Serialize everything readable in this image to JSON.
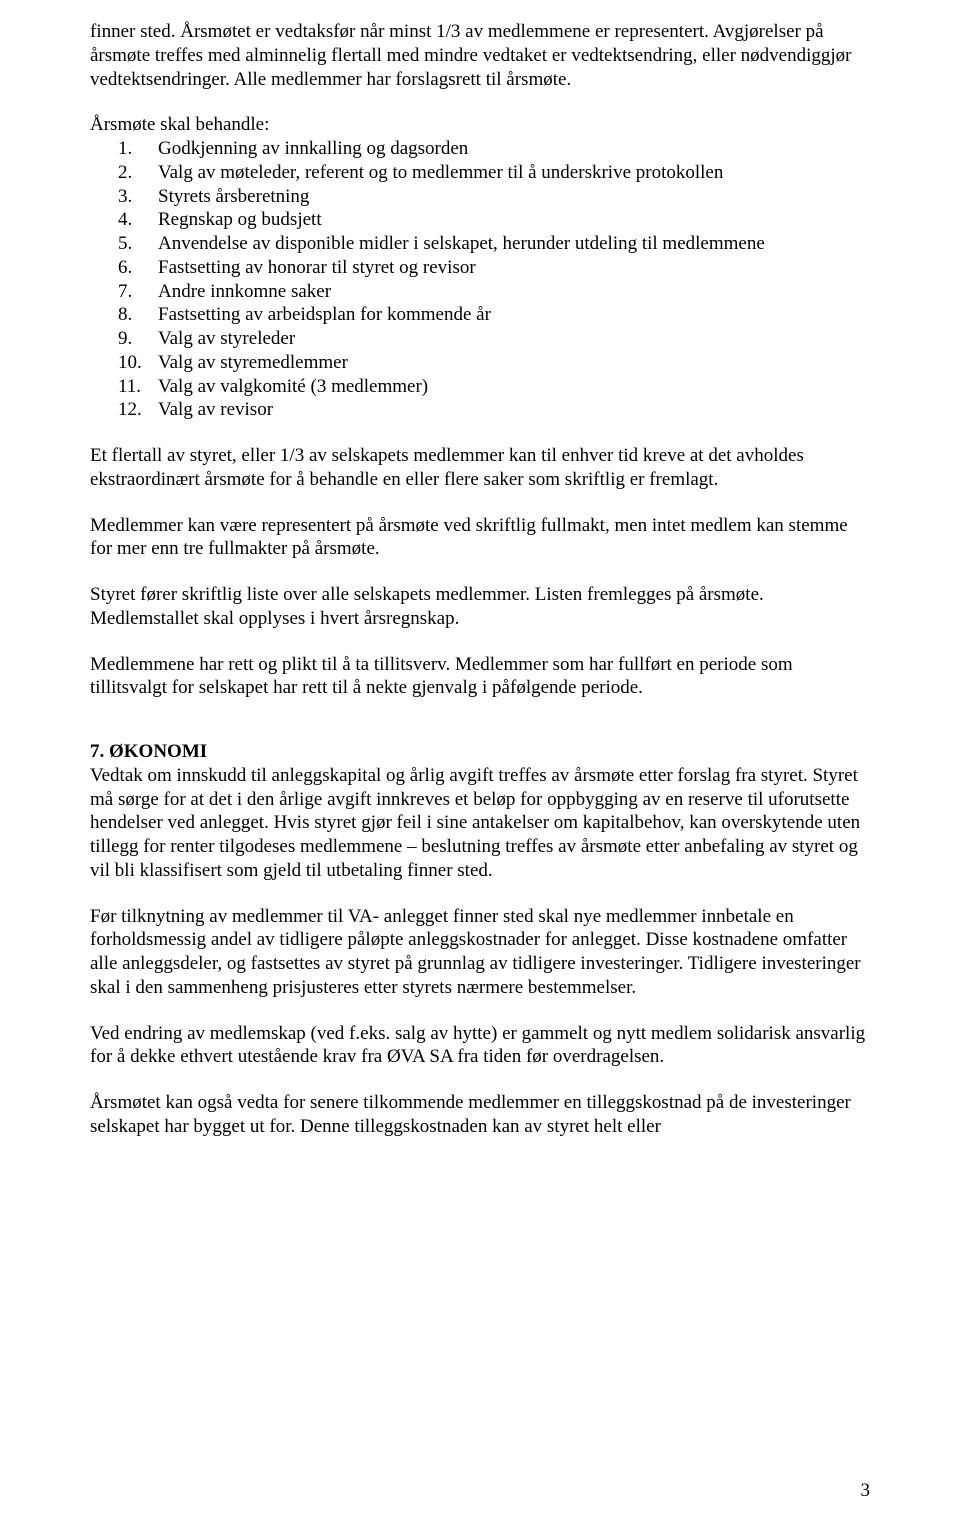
{
  "intro": {
    "p1": "finner sted. Årsmøtet er vedtaksfør når minst 1/3 av medlemmene er representert. Avgjørelser på årsmøte treffes med alminnelig flertall med mindre vedtaket er vedtektsendring, eller nødvendiggjør vedtektsendringer. Alle medlemmer har forslagsrett til årsmøte."
  },
  "agenda": {
    "leadin": "Årsmøte skal behandle:",
    "items": [
      "Godkjenning av innkalling og dagsorden",
      "Valg av møteleder, referent og to medlemmer til å underskrive protokollen",
      "Styrets årsberetning",
      "Regnskap og budsjett",
      "Anvendelse av disponible midler i selskapet, herunder utdeling til medlemmene",
      "Fastsetting av honorar til styret og revisor",
      "Andre innkomne saker",
      "Fastsetting av arbeidsplan for kommende år",
      "Valg av styreleder",
      "Valg av styremedlemmer",
      "Valg av valgkomité (3 medlemmer)",
      "Valg av revisor"
    ],
    "numbers": [
      "1.",
      "2.",
      "3.",
      "4.",
      "5.",
      "6.",
      "7.",
      "8.",
      "9.",
      "10.",
      "11.",
      "12."
    ]
  },
  "body": {
    "p2": "Et flertall av styret, eller 1/3 av selskapets medlemmer kan til enhver tid kreve at det avholdes ekstraordinært årsmøte for å behandle en eller flere saker som skriftlig er fremlagt.",
    "p3": "Medlemmer kan være representert på årsmøte ved skriftlig fullmakt, men intet medlem kan stemme for mer enn tre fullmakter på årsmøte.",
    "p4": "Styret fører skriftlig liste over alle selskapets medlemmer. Listen fremlegges på årsmøte. Medlemstallet skal opplyses i hvert årsregnskap.",
    "p5": "Medlemmene har rett og plikt til å ta tillitsverv. Medlemmer som har fullført en periode som tillitsvalgt for selskapet har rett til å nekte gjenvalg i påfølgende periode."
  },
  "section7": {
    "heading": "7. ØKONOMI",
    "p1": "Vedtak om innskudd til anleggskapital og årlig avgift treffes av årsmøte etter forslag fra styret. Styret må sørge for at det i den årlige avgift innkreves et beløp for oppbygging av en reserve til uforutsette hendelser ved anlegget. Hvis styret gjør feil i sine antakelser om kapitalbehov, kan overskytende uten tillegg for renter tilgodeses medlemmene – beslutning treffes av årsmøte etter anbefaling av styret og vil bli klassifisert som gjeld til utbetaling finner sted.",
    "p2": "Før tilknytning av medlemmer til VA- anlegget finner sted skal nye medlemmer innbetale en forholdsmessig andel av tidligere påløpte anleggskostnader for anlegget. Disse kostnadene omfatter alle anleggsdeler, og fastsettes av styret på grunnlag av tidligere investeringer. Tidligere investeringer skal i den sammenheng prisjusteres etter styrets nærmere bestemmelser.",
    "p3": "Ved endring av medlemskap (ved f.eks. salg av hytte) er gammelt og nytt medlem solidarisk ansvarlig for å dekke ethvert utestående krav fra ØVA SA fra tiden før overdragelsen.",
    "p4": "Årsmøtet kan også vedta for senere tilkommende medlemmer en tilleggskostnad på de investeringer selskapet har bygget ut for. Denne tilleggskostnaden kan av styret helt eller"
  },
  "pageNumber": "3"
}
